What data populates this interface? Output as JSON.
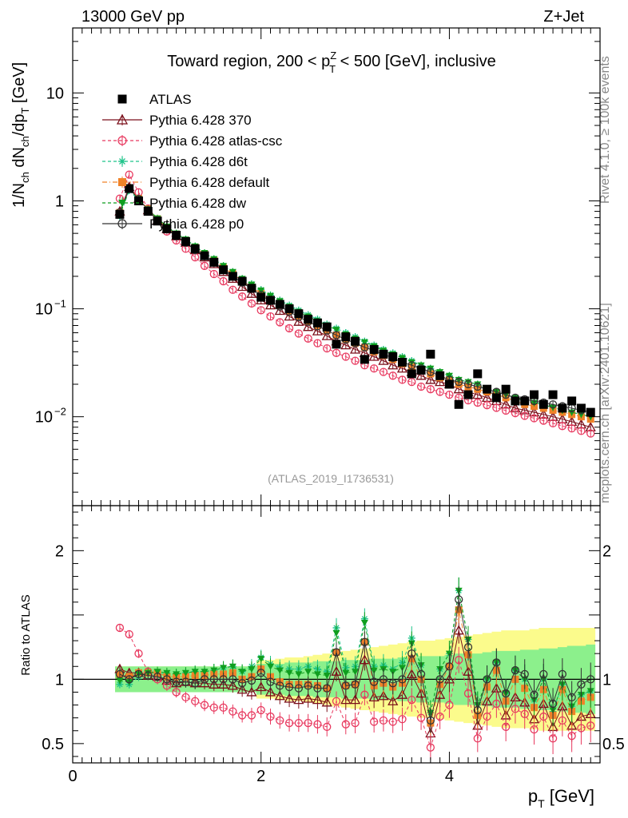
{
  "header": {
    "left": "13000 GeV pp",
    "right": "Z+Jet"
  },
  "side": {
    "rivet": "Rivet 4.1.0, ≥ 100k events",
    "mcplots": "mcplots.cern.ch [arXiv:2401.10621]"
  },
  "colors": {
    "atlas": "#000000",
    "p370": "#7a0f1a",
    "atlascsc": "#e8395f",
    "d6t": "#1fc48a",
    "default": "#f08228",
    "dw": "#0f9e1e",
    "p0": "#333333",
    "band_yellow": "#fbfb8c",
    "band_green": "#8cf08c"
  },
  "chart_data": [
    {
      "type": "scatter",
      "title": "Toward region, 200 < p_T^Z < 500 [GeV], inclusive",
      "title_parts": {
        "pre": "Toward region, 200 < p",
        "sup": "Z",
        "sub": "T",
        "post": " < 500 [GeV], inclusive"
      },
      "ylabel": "1/N_ch dN_ch/dp_T [GeV]",
      "ylabel_parts": {
        "a": "1/N",
        "b": "ch",
        "c": " dN",
        "d": "ch",
        "e": "/dp",
        "f": "T",
        "g": " [GeV]"
      },
      "yscale": "log",
      "xlim": [
        0,
        5.6
      ],
      "ylim": [
        0.0015,
        40
      ],
      "yticks": [
        {
          "value": 10,
          "label": "10",
          "sup": ""
        },
        {
          "value": 1,
          "label": "1",
          "sup": ""
        },
        {
          "value": 0.1,
          "label": "10",
          "sup": "−1"
        },
        {
          "value": 0.01,
          "label": "10",
          "sup": "−2"
        }
      ],
      "watermark": "(ATLAS_2019_I1736531)",
      "legend_position": "top-left",
      "x": [
        0.5,
        0.6,
        0.7,
        0.8,
        0.9,
        1.0,
        1.1,
        1.2,
        1.3,
        1.4,
        1.5,
        1.6,
        1.7,
        1.8,
        1.9,
        2.0,
        2.1,
        2.2,
        2.3,
        2.4,
        2.5,
        2.6,
        2.7,
        2.8,
        2.9,
        3.0,
        3.1,
        3.2,
        3.3,
        3.4,
        3.5,
        3.6,
        3.7,
        3.8,
        3.9,
        4.0,
        4.1,
        4.2,
        4.3,
        4.4,
        4.5,
        4.6,
        4.7,
        4.8,
        4.9,
        5.0,
        5.1,
        5.2,
        5.3,
        5.4,
        5.5
      ],
      "series": [
        {
          "name": "ATLAS",
          "key": "atlas",
          "marker": "square-filled",
          "values": [
            0.75,
            1.3,
            1.0,
            0.8,
            0.65,
            0.55,
            0.48,
            0.42,
            0.36,
            0.31,
            0.27,
            0.23,
            0.2,
            0.18,
            0.155,
            0.128,
            0.12,
            0.11,
            0.1,
            0.09,
            0.08,
            0.074,
            0.068,
            0.047,
            0.055,
            0.05,
            0.034,
            0.042,
            0.038,
            0.036,
            0.032,
            0.025,
            0.027,
            0.038,
            0.024,
            0.02,
            0.013,
            0.016,
            0.025,
            0.018,
            0.015,
            0.018,
            0.014,
            0.014,
            0.016,
            0.013,
            0.016,
            0.012,
            0.014,
            0.012,
            0.011
          ]
        },
        {
          "name": "Pythia 6.428 370",
          "key": "p370",
          "marker": "triangle-open",
          "line": "solid",
          "values": [
            0.8,
            1.35,
            1.05,
            0.82,
            0.66,
            0.55,
            0.47,
            0.41,
            0.35,
            0.3,
            0.26,
            0.22,
            0.19,
            0.16,
            0.138,
            0.12,
            0.108,
            0.096,
            0.085,
            0.076,
            0.068,
            0.062,
            0.056,
            0.05,
            0.046,
            0.042,
            0.039,
            0.036,
            0.033,
            0.03,
            0.028,
            0.026,
            0.024,
            0.022,
            0.021,
            0.02,
            0.018,
            0.017,
            0.016,
            0.015,
            0.014,
            0.013,
            0.012,
            0.0115,
            0.011,
            0.0105,
            0.01,
            0.0095,
            0.009,
            0.0085,
            0.008
          ]
        },
        {
          "name": "Pythia 6.428 atlas-csc",
          "key": "atlascsc",
          "marker": "circle-open",
          "line": "dashed",
          "values": [
            1.05,
            1.75,
            1.2,
            0.85,
            0.65,
            0.52,
            0.43,
            0.36,
            0.3,
            0.25,
            0.21,
            0.18,
            0.15,
            0.13,
            0.112,
            0.097,
            0.085,
            0.075,
            0.066,
            0.059,
            0.053,
            0.048,
            0.043,
            0.039,
            0.036,
            0.033,
            0.03,
            0.028,
            0.026,
            0.024,
            0.022,
            0.021,
            0.019,
            0.018,
            0.017,
            0.016,
            0.015,
            0.0142,
            0.0135,
            0.0128,
            0.0121,
            0.0114,
            0.0108,
            0.0102,
            0.0097,
            0.0092,
            0.0087,
            0.0082,
            0.0078,
            0.0074,
            0.007
          ]
        },
        {
          "name": "Pythia 6.428 d6t",
          "key": "d6t",
          "marker": "asterisk",
          "line": "dashed",
          "values": [
            0.72,
            1.25,
            1.02,
            0.83,
            0.68,
            0.57,
            0.5,
            0.44,
            0.38,
            0.33,
            0.29,
            0.25,
            0.22,
            0.19,
            0.17,
            0.15,
            0.134,
            0.12,
            0.108,
            0.097,
            0.088,
            0.08,
            0.072,
            0.066,
            0.06,
            0.055,
            0.05,
            0.046,
            0.042,
            0.039,
            0.036,
            0.033,
            0.03,
            0.028,
            0.026,
            0.024,
            0.022,
            0.021,
            0.02,
            0.018,
            0.017,
            0.016,
            0.015,
            0.014,
            0.0135,
            0.013,
            0.012,
            0.0115,
            0.011,
            0.0105,
            0.01
          ]
        },
        {
          "name": "Pythia 6.428 default",
          "key": "default",
          "marker": "square-filled",
          "line": "dashdot",
          "values": [
            0.78,
            1.32,
            1.05,
            0.84,
            0.68,
            0.56,
            0.49,
            0.43,
            0.37,
            0.32,
            0.28,
            0.24,
            0.21,
            0.18,
            0.158,
            0.138,
            0.122,
            0.108,
            0.096,
            0.086,
            0.077,
            0.07,
            0.063,
            0.057,
            0.052,
            0.048,
            0.044,
            0.04,
            0.037,
            0.034,
            0.031,
            0.029,
            0.027,
            0.025,
            0.023,
            0.022,
            0.02,
            0.019,
            0.018,
            0.017,
            0.016,
            0.015,
            0.014,
            0.013,
            0.0125,
            0.012,
            0.0115,
            0.011,
            0.0105,
            0.01,
            0.0095
          ]
        },
        {
          "name": "Pythia 6.428 dw",
          "key": "dw",
          "marker": "triangle-down-filled",
          "line": "dashed",
          "values": [
            0.74,
            1.28,
            1.04,
            0.84,
            0.69,
            0.58,
            0.5,
            0.44,
            0.38,
            0.33,
            0.29,
            0.25,
            0.22,
            0.19,
            0.168,
            0.148,
            0.132,
            0.118,
            0.105,
            0.094,
            0.085,
            0.077,
            0.07,
            0.064,
            0.058,
            0.053,
            0.049,
            0.045,
            0.041,
            0.038,
            0.035,
            0.032,
            0.03,
            0.028,
            0.026,
            0.024,
            0.022,
            0.021,
            0.02,
            0.018,
            0.017,
            0.016,
            0.015,
            0.014,
            0.0135,
            0.013,
            0.0122,
            0.0115,
            0.011,
            0.0105,
            0.01
          ]
        },
        {
          "name": "Pythia 6.428 p0",
          "key": "p0",
          "marker": "circle-open",
          "line": "solid",
          "values": [
            0.78,
            1.3,
            1.04,
            0.82,
            0.66,
            0.55,
            0.47,
            0.41,
            0.35,
            0.31,
            0.27,
            0.23,
            0.2,
            0.175,
            0.153,
            0.134,
            0.118,
            0.105,
            0.094,
            0.084,
            0.076,
            0.069,
            0.063,
            0.057,
            0.052,
            0.048,
            0.044,
            0.041,
            0.038,
            0.035,
            0.032,
            0.03,
            0.028,
            0.026,
            0.024,
            0.022,
            0.021,
            0.02,
            0.019,
            0.018,
            0.017,
            0.016,
            0.015,
            0.0145,
            0.014,
            0.0135,
            0.013,
            0.0125,
            0.012,
            0.0115,
            0.011
          ]
        }
      ]
    },
    {
      "type": "scatter",
      "title": "",
      "ylabel": "Ratio to ATLAS",
      "xlabel": "p_T [GeV]",
      "xlabel_parts": {
        "a": "p",
        "b": "T",
        "c": " [GeV]"
      },
      "xlim": [
        0,
        5.6
      ],
      "ylim": [
        0.35,
        2.35
      ],
      "xticks": [
        {
          "value": 0,
          "label": "0"
        },
        {
          "value": 2,
          "label": "2"
        },
        {
          "value": 4,
          "label": "4"
        }
      ],
      "yticks": [
        {
          "value": 0.5,
          "label": "0.5"
        },
        {
          "value": 1,
          "label": "1"
        },
        {
          "value": 2,
          "label": "2"
        }
      ],
      "reference_line": 1,
      "band_inner": [
        0.1,
        0.1,
        0.1,
        0.1,
        0.1,
        0.1,
        0.1,
        0.1,
        0.1,
        0.1,
        0.1,
        0.1,
        0.1,
        0.1,
        0.1,
        0.12,
        0.12,
        0.12,
        0.13,
        0.13,
        0.13,
        0.14,
        0.14,
        0.14,
        0.15,
        0.15,
        0.15,
        0.16,
        0.16,
        0.16,
        0.17,
        0.17,
        0.18,
        0.18,
        0.18,
        0.19,
        0.2,
        0.2,
        0.2,
        0.21,
        0.22,
        0.22,
        0.22,
        0.23,
        0.23,
        0.24,
        0.24,
        0.25,
        0.26,
        0.26,
        0.27
      ],
      "band_outer": [
        0.1,
        0.1,
        0.1,
        0.1,
        0.1,
        0.1,
        0.1,
        0.1,
        0.1,
        0.1,
        0.1,
        0.1,
        0.1,
        0.1,
        0.1,
        0.15,
        0.15,
        0.16,
        0.17,
        0.17,
        0.18,
        0.19,
        0.2,
        0.21,
        0.22,
        0.23,
        0.24,
        0.25,
        0.26,
        0.27,
        0.28,
        0.29,
        0.3,
        0.3,
        0.31,
        0.32,
        0.33,
        0.34,
        0.35,
        0.36,
        0.37,
        0.38,
        0.38,
        0.38,
        0.39,
        0.4,
        0.4,
        0.4,
        0.4,
        0.4,
        0.4
      ],
      "series": [
        {
          "name": "Pythia 6.428 370",
          "key": "p370",
          "values": [
            1.08,
            1.05,
            1.05,
            1.03,
            1.02,
            0.99,
            0.97,
            0.98,
            0.97,
            0.97,
            0.96,
            0.96,
            0.95,
            0.92,
            0.9,
            0.94,
            0.9,
            0.87,
            0.85,
            0.84,
            0.85,
            0.84,
            0.82,
            1.06,
            0.84,
            0.84,
            1.15,
            0.86,
            0.87,
            0.83,
            0.88,
            1.04,
            0.89,
            0.58,
            0.88,
            1.0,
            1.38,
            1.06,
            0.64,
            0.83,
            0.93,
            0.72,
            0.86,
            0.82,
            0.69,
            0.81,
            0.63,
            0.79,
            0.64,
            0.71,
            0.73
          ]
        },
        {
          "name": "Pythia 6.428 atlas-csc",
          "key": "atlascsc",
          "values": [
            1.4,
            1.35,
            1.2,
            1.06,
            1.0,
            0.95,
            0.9,
            0.86,
            0.83,
            0.8,
            0.78,
            0.78,
            0.75,
            0.72,
            0.72,
            0.76,
            0.71,
            0.68,
            0.66,
            0.66,
            0.66,
            0.65,
            0.63,
            0.83,
            0.65,
            0.66,
            0.88,
            0.67,
            0.68,
            0.67,
            0.69,
            0.84,
            0.7,
            0.47,
            0.71,
            0.8,
            1.15,
            0.89,
            0.54,
            0.71,
            0.81,
            0.63,
            0.77,
            0.73,
            0.61,
            0.71,
            0.54,
            0.68,
            0.56,
            0.62,
            0.64
          ]
        },
        {
          "name": "Pythia 6.428 d6t",
          "key": "d6t",
          "values": [
            0.96,
            0.96,
            1.02,
            1.04,
            1.05,
            1.04,
            1.04,
            1.05,
            1.06,
            1.06,
            1.07,
            1.09,
            1.1,
            1.06,
            1.1,
            1.17,
            1.12,
            1.09,
            1.08,
            1.08,
            1.1,
            1.08,
            1.06,
            1.4,
            1.09,
            1.1,
            1.47,
            1.1,
            1.11,
            1.08,
            1.13,
            1.32,
            1.11,
            0.74,
            1.08,
            1.2,
            1.69,
            1.31,
            0.8,
            1.0,
            1.13,
            0.89,
            1.07,
            1.0,
            0.84,
            1.0,
            0.75,
            0.96,
            0.79,
            0.88,
            0.91
          ]
        },
        {
          "name": "Pythia 6.428 default",
          "key": "default",
          "values": [
            1.04,
            1.02,
            1.05,
            1.05,
            1.05,
            1.02,
            1.02,
            1.02,
            1.03,
            1.03,
            1.04,
            1.04,
            1.05,
            1.0,
            1.02,
            1.08,
            1.02,
            0.98,
            0.96,
            0.96,
            0.96,
            0.95,
            0.93,
            1.21,
            0.95,
            0.96,
            1.29,
            0.95,
            0.97,
            0.94,
            0.97,
            1.16,
            1.0,
            0.66,
            0.96,
            1.1,
            1.54,
            1.19,
            0.72,
            0.94,
            1.07,
            0.83,
            1.0,
            0.93,
            0.78,
            0.92,
            0.72,
            0.92,
            0.75,
            0.83,
            0.86
          ]
        },
        {
          "name": "Pythia 6.428 dw",
          "key": "dw",
          "values": [
            0.99,
            0.98,
            1.04,
            1.05,
            1.06,
            1.05,
            1.04,
            1.05,
            1.06,
            1.06,
            1.07,
            1.09,
            1.1,
            1.06,
            1.08,
            1.16,
            1.1,
            1.07,
            1.05,
            1.04,
            1.06,
            1.04,
            1.03,
            1.36,
            1.05,
            1.06,
            1.44,
            1.07,
            1.08,
            1.06,
            1.09,
            1.28,
            1.11,
            0.74,
            1.08,
            1.2,
            1.69,
            1.31,
            0.8,
            1.0,
            1.13,
            0.89,
            1.07,
            1.0,
            0.84,
            1.0,
            0.76,
            0.96,
            0.79,
            0.88,
            0.91
          ]
        },
        {
          "name": "Pythia 6.428 p0",
          "key": "p0",
          "values": [
            1.04,
            1.0,
            1.04,
            1.03,
            1.02,
            1.0,
            0.98,
            0.98,
            0.97,
            1.0,
            1.0,
            1.0,
            1.0,
            0.97,
            0.99,
            1.05,
            0.98,
            0.95,
            0.94,
            0.93,
            0.95,
            0.93,
            0.93,
            1.21,
            0.95,
            0.96,
            1.29,
            0.98,
            1.0,
            0.97,
            1.0,
            1.2,
            1.04,
            0.68,
            1.0,
            1.1,
            1.62,
            1.25,
            0.76,
            1.0,
            1.13,
            0.89,
            1.07,
            1.04,
            0.88,
            1.04,
            0.81,
            1.04,
            0.86,
            0.96,
            1.0
          ]
        }
      ]
    }
  ]
}
